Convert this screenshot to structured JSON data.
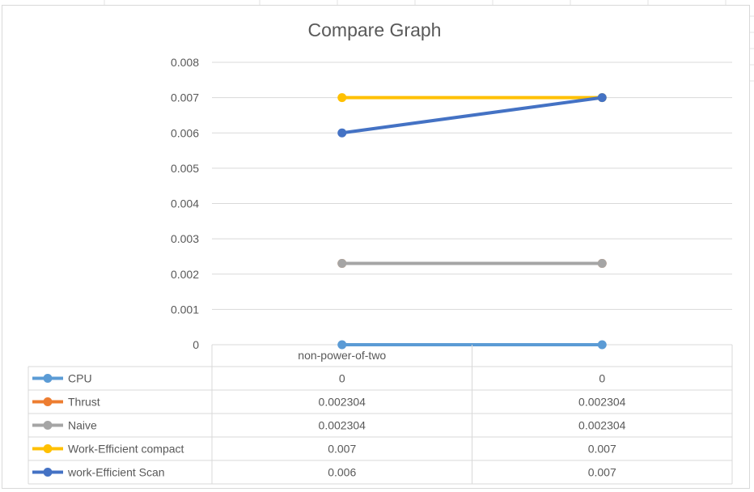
{
  "chart_data": {
    "type": "line",
    "title": "Compare Graph",
    "categories": [
      "non-power-of-two",
      ""
    ],
    "ylim": [
      0,
      0.008
    ],
    "yticks": [
      "0",
      "0.001",
      "0.002",
      "0.003",
      "0.004",
      "0.005",
      "0.006",
      "0.007",
      "0.008"
    ],
    "grid": true,
    "legend": "data-table-bottom",
    "series": [
      {
        "name": "CPU",
        "values": [
          0,
          0
        ],
        "labels": [
          "0",
          "0"
        ],
        "color": "#5B9BD5"
      },
      {
        "name": "Thrust",
        "values": [
          0.002304,
          0.002304
        ],
        "labels": [
          "0.002304",
          "0.002304"
        ],
        "color": "#ED7D31"
      },
      {
        "name": "Naive",
        "values": [
          0.002304,
          0.002304
        ],
        "labels": [
          "0.002304",
          "0.002304"
        ],
        "color": "#A5A5A5"
      },
      {
        "name": "Work-Efficient compact",
        "values": [
          0.007,
          0.007
        ],
        "labels": [
          "0.007",
          "0.007"
        ],
        "color": "#FFC000"
      },
      {
        "name": "work-Efficient Scan",
        "values": [
          0.006,
          0.007
        ],
        "labels": [
          "0.006",
          "0.007"
        ],
        "color": "#4472C4"
      }
    ]
  }
}
